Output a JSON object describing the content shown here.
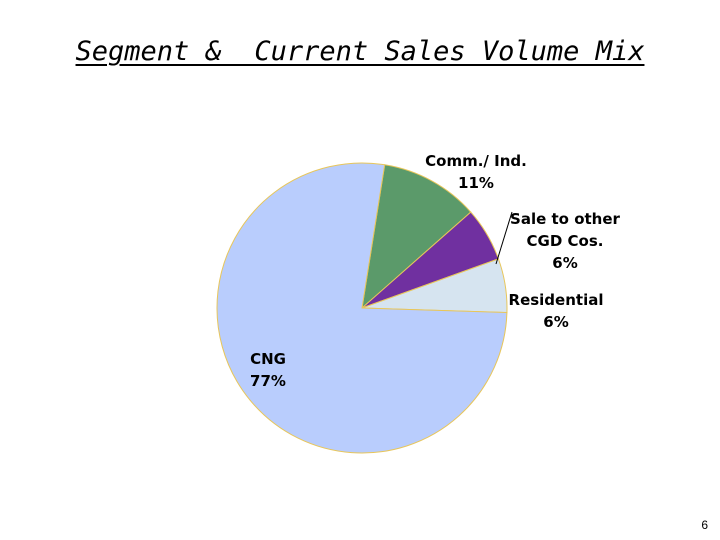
{
  "slide": {
    "title": "Segment &  Current Sales Volume Mix",
    "page_number": "6"
  },
  "chart_data": {
    "type": "pie",
    "title": "",
    "slices": [
      {
        "label_lines": [
          "Comm./ Ind.",
          "11%"
        ],
        "value": 11,
        "color": "#5b9a6a"
      },
      {
        "label_lines": [
          "Sale to other",
          "CGD Cos.",
          "6%"
        ],
        "value": 6,
        "color": "#7030a0"
      },
      {
        "label_lines": [
          "Residential",
          "6%"
        ],
        "value": 6,
        "color": "#d6e4f0"
      },
      {
        "label_lines": [
          "CNG",
          "77%"
        ],
        "value": 77,
        "color": "#b9cdfd"
      }
    ],
    "border_color": "#e8c65a"
  }
}
